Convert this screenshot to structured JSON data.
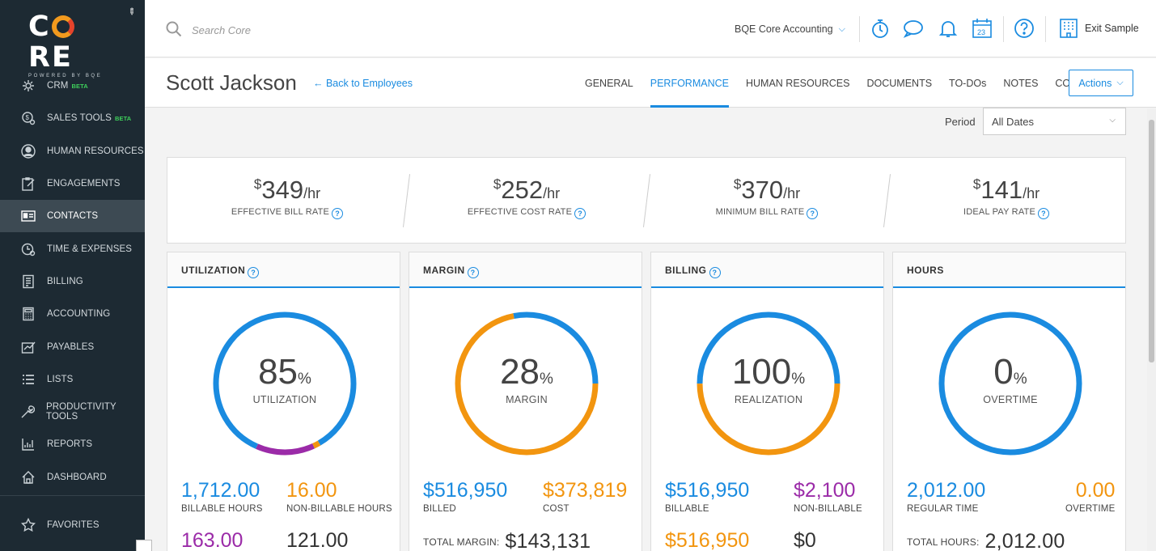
{
  "brand": {
    "logo_text": "CORE",
    "logo_sub": "POWERED BY BQE"
  },
  "sidebar": {
    "items": [
      {
        "label": "CRM",
        "badge": "BETA",
        "icon": "crm-icon"
      },
      {
        "label": "SALES TOOLS",
        "badge": "BETA",
        "icon": "sales-tools-icon"
      },
      {
        "label": "HUMAN RESOURCES",
        "icon": "person-icon"
      },
      {
        "label": "ENGAGEMENTS",
        "icon": "clipboard-icon"
      },
      {
        "label": "CONTACTS",
        "icon": "contact-card-icon",
        "active": true
      },
      {
        "label": "TIME & EXPENSES",
        "icon": "clock-icon"
      },
      {
        "label": "BILLING",
        "icon": "invoice-icon"
      },
      {
        "label": "ACCOUNTING",
        "icon": "calculator-icon"
      },
      {
        "label": "PAYABLES",
        "icon": "payables-icon"
      },
      {
        "label": "LISTS",
        "icon": "list-icon"
      },
      {
        "label": "PRODUCTIVITY TOOLS",
        "icon": "wrench-icon"
      },
      {
        "label": "REPORTS",
        "icon": "report-icon"
      },
      {
        "label": "DASHBOARD",
        "icon": "home-icon"
      }
    ],
    "favorites": "FAVORITES"
  },
  "topbar": {
    "search_placeholder": "Search Core",
    "company": "BQE Core Accounting",
    "calendar_day": "23",
    "exit_label": "Exit Sample"
  },
  "page": {
    "title": "Scott Jackson",
    "back_link": "← Back to Employees",
    "tabs": [
      "GENERAL",
      "PERFORMANCE",
      "HUMAN RESOURCES",
      "DOCUMENTS",
      "TO-DOs",
      "NOTES",
      "CONTACT"
    ],
    "active_tab": "PERFORMANCE",
    "actions_label": "Actions"
  },
  "filters": {
    "period_label": "Period",
    "period_value": "All Dates"
  },
  "rates": [
    {
      "currency": "$",
      "value": "349",
      "unit": "/hr",
      "label": "EFFECTIVE BILL RATE"
    },
    {
      "currency": "$",
      "value": "252",
      "unit": "/hr",
      "label": "EFFECTIVE COST RATE"
    },
    {
      "currency": "$",
      "value": "370",
      "unit": "/hr",
      "label": "MINIMUM BILL RATE"
    },
    {
      "currency": "$",
      "value": "141",
      "unit": "/hr",
      "label": "IDEAL PAY RATE"
    }
  ],
  "colors": {
    "blue": "#1a8be0",
    "orange": "#f2950f",
    "purple": "#9b2ba8"
  },
  "cards": {
    "utilization": {
      "title": "UTILIZATION",
      "pct": "85",
      "pct_sign": "%",
      "center_label": "UTILIZATION",
      "segments": [
        {
          "fraction": 0.85,
          "color": "#1a8be0"
        },
        {
          "fraction": 0.135,
          "color": "#9b2ba8"
        },
        {
          "fraction": 0.015,
          "color": "#f2950f"
        }
      ],
      "stats": [
        {
          "value": "1,712.00",
          "label": "BILLABLE HOURS"
        },
        {
          "value": "16.00",
          "label": "NON-BILLABLE HOURS"
        },
        {
          "value": "163.00"
        },
        {
          "value": "121.00"
        }
      ]
    },
    "margin": {
      "title": "MARGIN",
      "pct": "28",
      "pct_sign": "%",
      "center_label": "MARGIN",
      "segments": [
        {
          "fraction": 0.28,
          "color": "#1a8be0"
        },
        {
          "fraction": 0.72,
          "color": "#f2950f"
        }
      ],
      "stats": [
        {
          "value": "$516,950",
          "label": "BILLED"
        },
        {
          "value": "$373,819",
          "label": "COST"
        }
      ],
      "total_label": "TOTAL MARGIN:",
      "total_value": "$143,131"
    },
    "billing": {
      "title": "BILLING",
      "pct": "100",
      "pct_sign": "%",
      "center_label": "REALIZATION",
      "segments": [
        {
          "fraction": 0.5,
          "color": "#1a8be0"
        },
        {
          "fraction": 0.5,
          "color": "#f2950f"
        }
      ],
      "stats": [
        {
          "value": "$516,950",
          "label": "BILLABLE"
        },
        {
          "value": "$2,100",
          "label": "NON-BILLABLE"
        },
        {
          "value": "$516,950"
        },
        {
          "value": "$0"
        }
      ]
    },
    "hours": {
      "title": "HOURS",
      "pct": "0",
      "pct_sign": "%",
      "center_label": "OVERTIME",
      "segments": [
        {
          "fraction": 1.0,
          "color": "#1a8be0"
        }
      ],
      "stats": [
        {
          "value": "2,012.00",
          "label": "REGULAR TIME"
        },
        {
          "value": "0.00",
          "label": "OVERTIME"
        }
      ],
      "total_label": "TOTAL HOURS:",
      "total_value": "2,012.00"
    }
  }
}
